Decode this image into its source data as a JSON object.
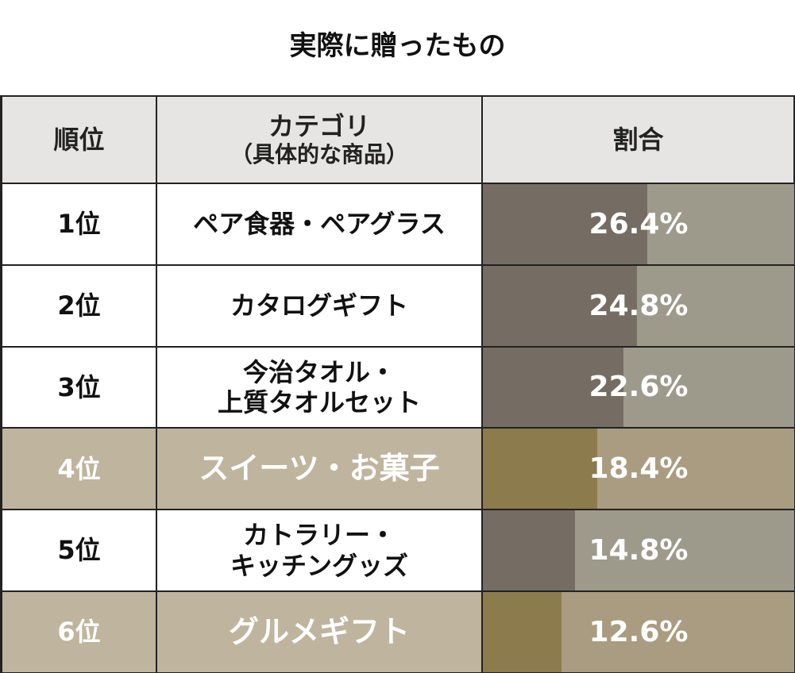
{
  "title": "実際に贈ったもの",
  "table": {
    "header": {
      "rank": "順位",
      "category": [
        "カテゴリ",
        "（具体的な商品）"
      ],
      "share": "割合"
    },
    "xlim": [
      0,
      50
    ],
    "rows": [
      {
        "rank": "1位",
        "category": [
          "ペア食器・ペアグラス"
        ],
        "value": 26.4,
        "value_label": "26.4%",
        "highlight": false
      },
      {
        "rank": "2位",
        "category": [
          "カタログギフト"
        ],
        "value": 24.8,
        "value_label": "24.8%",
        "highlight": false
      },
      {
        "rank": "3位",
        "category": [
          "今治タオル・",
          "上質タオルセット"
        ],
        "value": 22.6,
        "value_label": "22.6%",
        "highlight": false
      },
      {
        "rank": "4位",
        "category": [
          "スイーツ・お菓子"
        ],
        "value": 18.4,
        "value_label": "18.4%",
        "highlight": true
      },
      {
        "rank": "5位",
        "category": [
          "カトラリー・",
          "キッチングッズ"
        ],
        "value": 14.8,
        "value_label": "14.8%",
        "highlight": false
      },
      {
        "rank": "6位",
        "category": [
          "グルメギフト"
        ],
        "value": 12.6,
        "value_label": "12.6%",
        "highlight": true
      }
    ]
  }
}
